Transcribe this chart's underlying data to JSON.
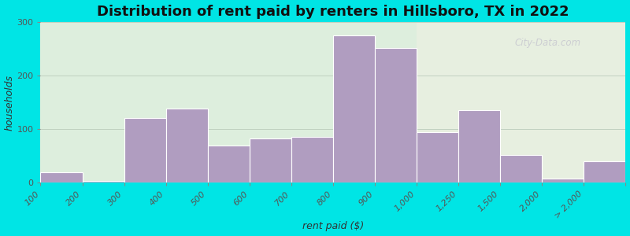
{
  "title": "Distribution of rent paid by renters in Hillsboro, TX in 2022",
  "xlabel": "rent paid ($)",
  "ylabel": "households",
  "bin_labels": [
    "100",
    "200",
    "300",
    "400",
    "500",
    "600",
    "700",
    "800",
    "900",
    "1,000",
    "1,250",
    "1,500",
    "2,000",
    "> 2,000"
  ],
  "bar_heights": [
    20,
    3,
    120,
    138,
    70,
    83,
    85,
    275,
    252,
    95,
    135,
    52,
    8,
    40
  ],
  "bar_color": "#b09dc0",
  "bar_edge_color": "#ffffff",
  "ylim": [
    0,
    300
  ],
  "yticks": [
    0,
    100,
    200,
    300
  ],
  "bg_color_outer": "#00e5e5",
  "bg_color_plot": "#ddeedd",
  "title_fontsize": 13,
  "axis_label_fontsize": 9,
  "tick_fontsize": 8,
  "watermark_text": "City-Data.com",
  "watermark_color": "#c8c8d0"
}
